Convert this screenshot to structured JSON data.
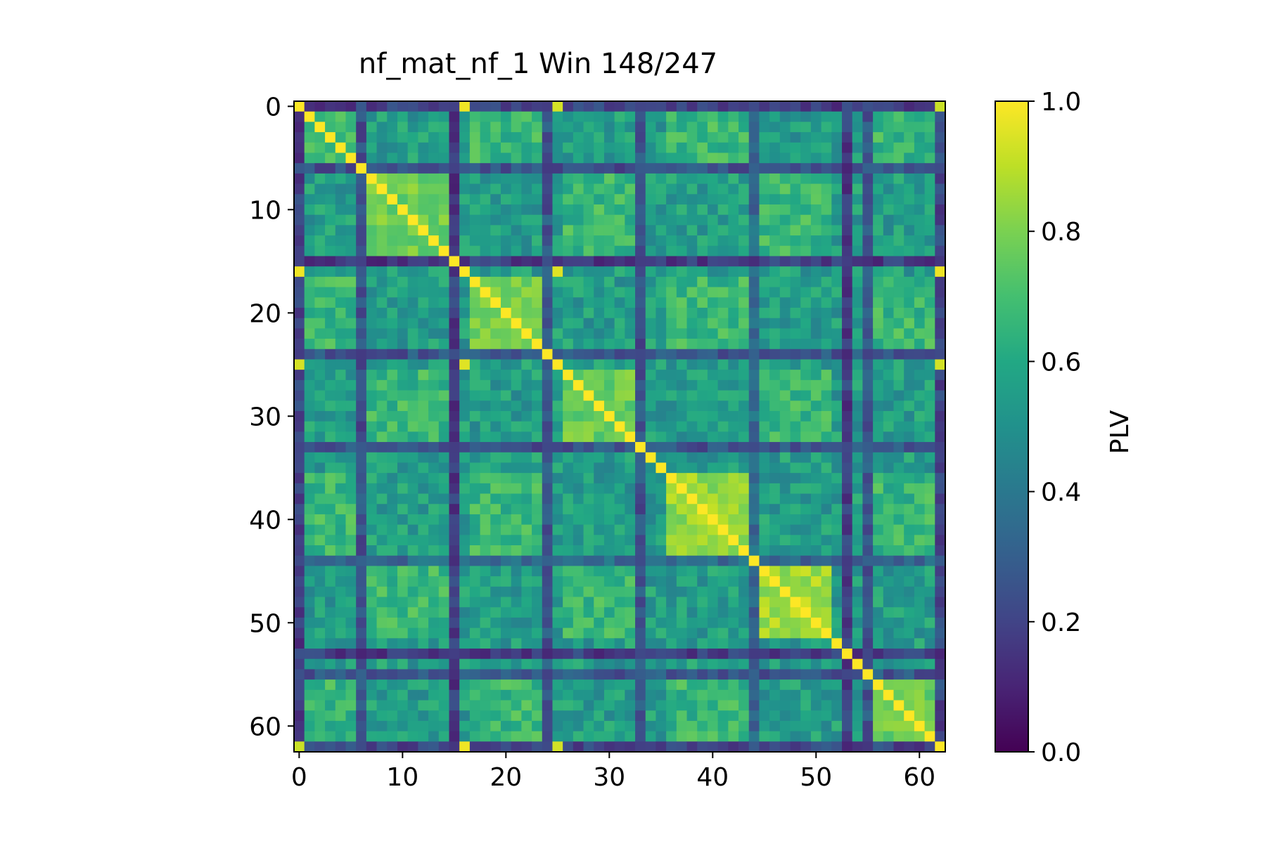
{
  "chart_data": {
    "type": "heatmap",
    "title": "nf_mat_nf_1 Win 148/247",
    "xlabel": "",
    "ylabel": "",
    "colorbar_label": "PLV",
    "matrix_size": 63,
    "xlim": [
      -0.5,
      62.5
    ],
    "ylim": [
      62.5,
      -0.5
    ],
    "x_ticks": [
      0,
      10,
      20,
      30,
      40,
      50,
      60
    ],
    "y_ticks": [
      0,
      10,
      20,
      30,
      40,
      50,
      60
    ],
    "x_tick_labels": [
      "0",
      "10",
      "20",
      "30",
      "40",
      "50",
      "60"
    ],
    "y_tick_labels": [
      "0",
      "10",
      "20",
      "30",
      "40",
      "50",
      "60"
    ],
    "colorbar_range": [
      0.0,
      1.0
    ],
    "colorbar_ticks": [
      0.0,
      0.2,
      0.4,
      0.6,
      0.8,
      1.0
    ],
    "colorbar_tick_labels": [
      "0.0",
      "0.2",
      "0.4",
      "0.6",
      "0.8",
      "1.0"
    ],
    "colormap": "viridis",
    "diagonal_value": 1.0,
    "channel_groups": [
      {
        "start": 1,
        "end": 5,
        "strength": 0.7
      },
      {
        "start": 7,
        "end": 14,
        "strength": 0.78
      },
      {
        "start": 17,
        "end": 23,
        "strength": 0.8
      },
      {
        "start": 26,
        "end": 32,
        "strength": 0.77
      },
      {
        "start": 36,
        "end": 43,
        "strength": 0.84
      },
      {
        "start": 45,
        "end": 51,
        "strength": 0.86
      },
      {
        "start": 56,
        "end": 61,
        "strength": 0.78
      }
    ],
    "low_connectivity_channels": [
      {
        "index": 0,
        "level": 0.1
      },
      {
        "index": 6,
        "level": 0.16
      },
      {
        "index": 15,
        "level": 0.08
      },
      {
        "index": 24,
        "level": 0.17
      },
      {
        "index": 33,
        "level": 0.16
      },
      {
        "index": 44,
        "level": 0.25
      },
      {
        "index": 53,
        "level": 0.09
      },
      {
        "index": 55,
        "level": 0.18
      },
      {
        "index": 62,
        "level": 0.12
      }
    ],
    "hub_channels": [
      0,
      16,
      25,
      62
    ],
    "background_level": 0.55
  }
}
